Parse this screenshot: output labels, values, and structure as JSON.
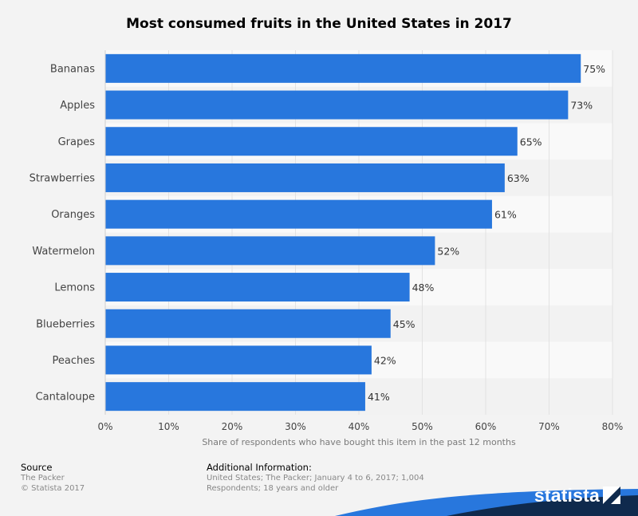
{
  "chart_data": {
    "type": "bar",
    "orientation": "horizontal",
    "title": "Most consumed fruits in the United States in 2017",
    "xlabel": "Share of respondents who have bought this item in the past 12 months",
    "categories": [
      "Bananas",
      "Apples",
      "Grapes",
      "Strawberries",
      "Oranges",
      "Watermelon",
      "Lemons",
      "Blueberries",
      "Peaches",
      "Cantaloupe"
    ],
    "values": [
      75,
      73,
      65,
      63,
      61,
      52,
      48,
      45,
      42,
      41
    ],
    "value_labels": [
      "75%",
      "73%",
      "65%",
      "63%",
      "61%",
      "52%",
      "48%",
      "45%",
      "42%",
      "41%"
    ],
    "xlim": [
      0,
      80
    ],
    "ticks": [
      "0%",
      "10%",
      "20%",
      "30%",
      "40%",
      "50%",
      "60%",
      "70%",
      "80%"
    ],
    "tick_values": [
      0,
      10,
      20,
      30,
      40,
      50,
      60,
      70,
      80
    ],
    "bar_color": "#2877dd",
    "grid": true
  },
  "footer": {
    "source_heading": "Source",
    "source_lines": [
      "The Packer",
      "© Statista 2017"
    ],
    "info_heading": "Additional Information:",
    "info_lines": [
      "United States; The Packer; January 4 to 6, 2017; 1,004",
      "Respondents; 18 years and older"
    ]
  },
  "brand": {
    "name": "statista",
    "icon": "statista-logo-icon",
    "colors": {
      "dark": "#0f2a4d",
      "accent": "#2877dd"
    }
  }
}
